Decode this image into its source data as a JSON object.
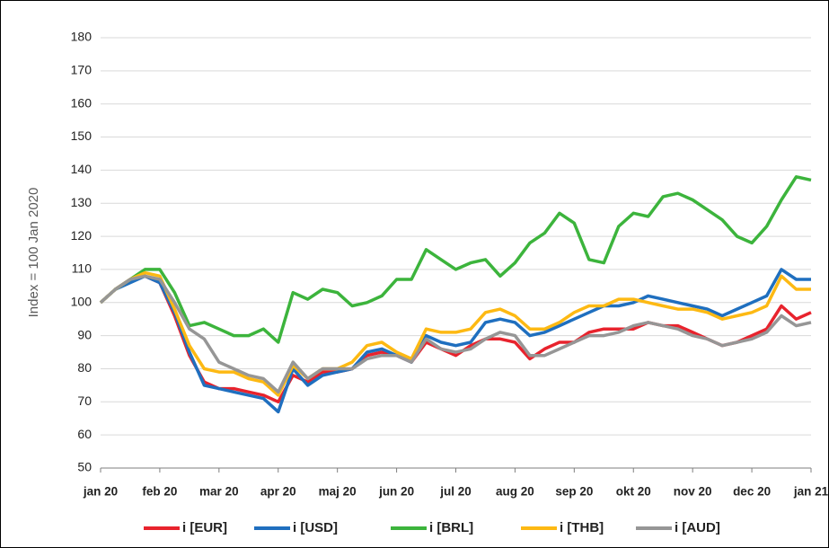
{
  "chart_data": {
    "type": "line",
    "ylabel": "Index = 100  Jan 2020",
    "categories": [
      "jan 20",
      null,
      null,
      null,
      "feb 20",
      null,
      null,
      null,
      "mar 20",
      null,
      null,
      null,
      "apr 20",
      null,
      null,
      null,
      "maj 20",
      null,
      null,
      null,
      "jun 20",
      null,
      null,
      null,
      "jul 20",
      null,
      null,
      null,
      "aug 20",
      null,
      null,
      null,
      "sep 20",
      null,
      null,
      null,
      "okt 20",
      null,
      null,
      null,
      "nov 20",
      null,
      null,
      null,
      "dec 20",
      null,
      null,
      null,
      "jan 21"
    ],
    "series": [
      {
        "name": "i [EUR]",
        "color": "#e8232d",
        "values": [
          100,
          104,
          107,
          108,
          106,
          96,
          84,
          76,
          74,
          74,
          73,
          72,
          70,
          78,
          76,
          79,
          79,
          80,
          84,
          85,
          84,
          82,
          88,
          86,
          84,
          87,
          89,
          89,
          88,
          83,
          86,
          88,
          88,
          91,
          92,
          92,
          92,
          94,
          93,
          93,
          91,
          89,
          87,
          88,
          90,
          92,
          99,
          95,
          97
        ]
      },
      {
        "name": "i [USD]",
        "color": "#1f6fbf",
        "values": [
          100,
          104,
          106,
          108,
          106,
          97,
          85,
          75,
          74,
          73,
          72,
          71,
          67,
          80,
          75,
          78,
          79,
          80,
          85,
          86,
          84,
          82,
          90,
          88,
          87,
          88,
          94,
          95,
          94,
          90,
          91,
          93,
          95,
          97,
          99,
          99,
          100,
          102,
          101,
          100,
          99,
          98,
          96,
          98,
          100,
          102,
          110,
          107,
          107
        ]
      },
      {
        "name": "i [BRL]",
        "color": "#3cb43c",
        "values": [
          100,
          104,
          107,
          110,
          110,
          103,
          93,
          94,
          92,
          90,
          90,
          92,
          88,
          103,
          101,
          104,
          103,
          99,
          100,
          102,
          107,
          107,
          116,
          113,
          110,
          112,
          113,
          108,
          112,
          118,
          121,
          127,
          124,
          113,
          112,
          123,
          127,
          126,
          132,
          133,
          131,
          128,
          125,
          120,
          118,
          123,
          131,
          138,
          137
        ]
      },
      {
        "name": "i [THB]",
        "color": "#fdb913",
        "values": [
          100,
          104,
          107,
          109,
          108,
          98,
          87,
          80,
          79,
          79,
          77,
          76,
          72,
          81,
          77,
          80,
          80,
          82,
          87,
          88,
          85,
          83,
          92,
          91,
          91,
          92,
          97,
          98,
          96,
          92,
          92,
          94,
          97,
          99,
          99,
          101,
          101,
          100,
          99,
          98,
          98,
          97,
          95,
          96,
          97,
          99,
          108,
          104,
          104
        ]
      },
      {
        "name": "i [AUD]",
        "color": "#969696",
        "values": [
          100,
          104,
          107,
          108,
          107,
          100,
          92,
          89,
          82,
          80,
          78,
          77,
          73,
          82,
          77,
          80,
          80,
          80,
          83,
          84,
          84,
          82,
          89,
          86,
          85,
          86,
          89,
          91,
          90,
          84,
          84,
          86,
          88,
          90,
          90,
          91,
          93,
          94,
          93,
          92,
          90,
          89,
          87,
          88,
          89,
          91,
          96,
          93,
          94
        ]
      }
    ],
    "ylim": [
      50,
      180
    ],
    "yticks": [
      50,
      60,
      70,
      80,
      90,
      100,
      110,
      120,
      130,
      140,
      150,
      160,
      170,
      180
    ],
    "grid": true,
    "legend": "bottom"
  }
}
